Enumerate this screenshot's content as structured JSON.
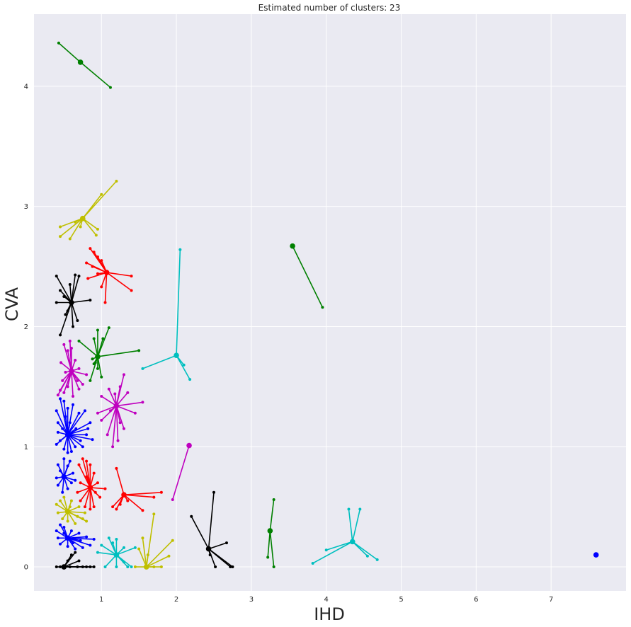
{
  "chart_data": {
    "type": "scatter",
    "title": "Estimated number of clusters: 23",
    "xlabel": "IHD",
    "ylabel": "CVA",
    "xlim": [
      0.1,
      8.0
    ],
    "ylim": [
      -0.2,
      4.6
    ],
    "x_ticks": [
      1,
      2,
      3,
      4,
      5,
      6,
      7
    ],
    "y_ticks": [
      0,
      1,
      2,
      3,
      4
    ],
    "grid": true,
    "background_color": "#eaeaf2",
    "grid_color": "#ffffff",
    "colors": {
      "b": "#0000ff",
      "g": "#008000",
      "r": "#ff0000",
      "c": "#00bfbf",
      "m": "#bf00bf",
      "y": "#bfbf00",
      "k": "#000000"
    },
    "clusters": [
      {
        "color": "g",
        "center": [
          0.72,
          4.2
        ],
        "members": [
          [
            0.43,
            4.36
          ],
          [
            1.12,
            3.99
          ]
        ]
      },
      {
        "color": "y",
        "center": [
          0.75,
          2.9
        ],
        "members": [
          [
            0.45,
            2.83
          ],
          [
            0.45,
            2.75
          ],
          [
            0.58,
            2.73
          ],
          [
            0.65,
            2.87
          ],
          [
            0.72,
            2.83
          ],
          [
            0.95,
            2.81
          ],
          [
            0.93,
            2.76
          ],
          [
            1.0,
            3.1
          ],
          [
            1.2,
            3.21
          ]
        ]
      },
      {
        "color": "r",
        "center": [
          1.07,
          2.45
        ],
        "members": [
          [
            0.85,
            2.65
          ],
          [
            0.9,
            2.62
          ],
          [
            0.95,
            2.58
          ],
          [
            1.0,
            2.55
          ],
          [
            0.8,
            2.53
          ],
          [
            0.88,
            2.5
          ],
          [
            0.82,
            2.4
          ],
          [
            1.0,
            2.33
          ],
          [
            1.05,
            2.2
          ],
          [
            1.4,
            2.42
          ],
          [
            1.4,
            2.3
          ],
          [
            0.95,
            2.44
          ]
        ]
      },
      {
        "color": "k",
        "center": [
          0.6,
          2.2
        ],
        "members": [
          [
            0.4,
            2.42
          ],
          [
            0.45,
            2.3
          ],
          [
            0.5,
            2.25
          ],
          [
            0.4,
            2.2
          ],
          [
            0.52,
            2.1
          ],
          [
            0.45,
            1.93
          ],
          [
            0.55,
            2.13
          ],
          [
            0.62,
            2.0
          ],
          [
            0.68,
            2.05
          ],
          [
            0.65,
            2.43
          ],
          [
            0.7,
            2.42
          ],
          [
            0.85,
            2.22
          ],
          [
            0.58,
            2.35
          ]
        ]
      },
      {
        "color": "c",
        "center": [
          2.0,
          1.76
        ],
        "members": [
          [
            2.05,
            2.64
          ],
          [
            1.55,
            1.65
          ],
          [
            2.1,
            1.68
          ],
          [
            2.18,
            1.56
          ]
        ]
      },
      {
        "color": "g",
        "center": [
          0.95,
          1.75
        ],
        "members": [
          [
            0.7,
            1.88
          ],
          [
            0.9,
            1.9
          ],
          [
            0.95,
            1.97
          ],
          [
            1.1,
            1.99
          ],
          [
            1.02,
            1.9
          ],
          [
            1.5,
            1.8
          ],
          [
            0.9,
            1.69
          ],
          [
            0.85,
            1.55
          ],
          [
            1.0,
            1.58
          ],
          [
            0.92,
            1.7
          ],
          [
            0.95,
            1.65
          ],
          [
            0.88,
            1.73
          ]
        ]
      },
      {
        "color": "g",
        "center": [
          3.55,
          2.67
        ],
        "members": [
          [
            3.95,
            2.16
          ]
        ]
      },
      {
        "color": "m",
        "center": [
          0.6,
          1.63
        ],
        "members": [
          [
            0.5,
            1.85
          ],
          [
            0.55,
            1.8
          ],
          [
            0.6,
            1.82
          ],
          [
            0.65,
            1.72
          ],
          [
            0.7,
            1.65
          ],
          [
            0.8,
            1.6
          ],
          [
            0.75,
            1.52
          ],
          [
            0.7,
            1.48
          ],
          [
            0.62,
            1.42
          ],
          [
            0.55,
            1.5
          ],
          [
            0.5,
            1.45
          ],
          [
            0.45,
            1.47
          ],
          [
            0.42,
            1.43
          ],
          [
            0.48,
            1.55
          ],
          [
            0.52,
            1.62
          ],
          [
            0.58,
            1.88
          ],
          [
            0.46,
            1.7
          ],
          [
            0.68,
            1.55
          ]
        ]
      },
      {
        "color": "m",
        "center": [
          1.2,
          1.34
        ],
        "members": [
          [
            1.3,
            1.6
          ],
          [
            1.25,
            1.5
          ],
          [
            1.35,
            1.45
          ],
          [
            1.55,
            1.37
          ],
          [
            1.45,
            1.28
          ],
          [
            1.3,
            1.15
          ],
          [
            1.22,
            1.05
          ],
          [
            1.15,
            1.0
          ],
          [
            1.08,
            1.1
          ],
          [
            1.0,
            1.22
          ],
          [
            0.95,
            1.28
          ],
          [
            1.0,
            1.42
          ],
          [
            1.1,
            1.48
          ],
          [
            1.18,
            1.44
          ],
          [
            1.25,
            1.2
          ],
          [
            1.12,
            1.3
          ]
        ]
      },
      {
        "color": "m",
        "center": [
          2.17,
          1.01
        ],
        "members": [
          [
            1.95,
            0.56
          ]
        ]
      },
      {
        "color": "b",
        "center": [
          0.55,
          1.1
        ],
        "members": [
          [
            0.4,
            1.3
          ],
          [
            0.42,
            1.2
          ],
          [
            0.45,
            1.05
          ],
          [
            0.4,
            1.02
          ],
          [
            0.5,
            0.98
          ],
          [
            0.55,
            0.95
          ],
          [
            0.6,
            0.96
          ],
          [
            0.65,
            1.0
          ],
          [
            0.72,
            1.05
          ],
          [
            0.8,
            1.1
          ],
          [
            0.85,
            1.2
          ],
          [
            0.78,
            1.3
          ],
          [
            0.7,
            1.28
          ],
          [
            0.62,
            1.35
          ],
          [
            0.55,
            1.32
          ],
          [
            0.5,
            1.38
          ],
          [
            0.45,
            1.4
          ],
          [
            0.48,
            1.15
          ],
          [
            0.58,
            1.2
          ],
          [
            0.66,
            1.15
          ],
          [
            0.75,
            1.0
          ],
          [
            0.42,
            1.12
          ],
          [
            0.52,
            1.25
          ],
          [
            0.82,
            1.15
          ],
          [
            0.88,
            1.06
          ]
        ]
      },
      {
        "color": "b",
        "center": [
          0.5,
          0.75
        ],
        "members": [
          [
            0.42,
            0.85
          ],
          [
            0.45,
            0.8
          ],
          [
            0.55,
            0.84
          ],
          [
            0.62,
            0.78
          ],
          [
            0.6,
            0.7
          ],
          [
            0.55,
            0.65
          ],
          [
            0.48,
            0.62
          ],
          [
            0.42,
            0.68
          ],
          [
            0.4,
            0.74
          ],
          [
            0.58,
            0.88
          ],
          [
            0.5,
            0.9
          ],
          [
            0.65,
            0.72
          ]
        ]
      },
      {
        "color": "r",
        "center": [
          0.85,
          0.66
        ],
        "members": [
          [
            0.7,
            0.85
          ],
          [
            0.75,
            0.9
          ],
          [
            0.8,
            0.88
          ],
          [
            0.85,
            0.85
          ],
          [
            0.9,
            0.78
          ],
          [
            0.95,
            0.7
          ],
          [
            1.05,
            0.65
          ],
          [
            0.98,
            0.58
          ],
          [
            0.9,
            0.5
          ],
          [
            0.85,
            0.48
          ],
          [
            0.78,
            0.5
          ],
          [
            0.72,
            0.55
          ],
          [
            0.68,
            0.62
          ],
          [
            0.72,
            0.7
          ],
          [
            0.8,
            0.75
          ],
          [
            0.92,
            0.62
          ]
        ]
      },
      {
        "color": "r",
        "center": [
          1.3,
          0.6
        ],
        "members": [
          [
            1.2,
            0.82
          ],
          [
            1.8,
            0.62
          ],
          [
            1.7,
            0.58
          ],
          [
            1.55,
            0.47
          ],
          [
            1.25,
            0.52
          ],
          [
            1.15,
            0.5
          ],
          [
            1.35,
            0.55
          ],
          [
            1.2,
            0.48
          ]
        ]
      },
      {
        "color": "y",
        "center": [
          0.55,
          0.46
        ],
        "members": [
          [
            0.4,
            0.52
          ],
          [
            0.45,
            0.55
          ],
          [
            0.5,
            0.58
          ],
          [
            0.6,
            0.55
          ],
          [
            0.7,
            0.5
          ],
          [
            0.78,
            0.45
          ],
          [
            0.75,
            0.4
          ],
          [
            0.65,
            0.36
          ],
          [
            0.55,
            0.38
          ],
          [
            0.48,
            0.4
          ],
          [
            0.42,
            0.45
          ],
          [
            0.8,
            0.38
          ],
          [
            0.58,
            0.5
          ],
          [
            0.68,
            0.42
          ]
        ]
      },
      {
        "color": "b",
        "center": [
          0.55,
          0.24
        ],
        "members": [
          [
            0.4,
            0.3
          ],
          [
            0.45,
            0.35
          ],
          [
            0.5,
            0.33
          ],
          [
            0.6,
            0.3
          ],
          [
            0.7,
            0.28
          ],
          [
            0.8,
            0.25
          ],
          [
            0.9,
            0.23
          ],
          [
            0.85,
            0.18
          ],
          [
            0.75,
            0.16
          ],
          [
            0.65,
            0.15
          ],
          [
            0.55,
            0.17
          ],
          [
            0.45,
            0.19
          ],
          [
            0.42,
            0.24
          ],
          [
            0.5,
            0.28
          ],
          [
            0.62,
            0.2
          ],
          [
            0.72,
            0.22
          ]
        ]
      },
      {
        "color": "c",
        "center": [
          1.2,
          0.1
        ],
        "members": [
          [
            1.0,
            0.18
          ],
          [
            1.1,
            0.24
          ],
          [
            1.2,
            0.23
          ],
          [
            1.3,
            0.16
          ],
          [
            1.45,
            0.16
          ],
          [
            1.4,
            0.0
          ],
          [
            1.35,
            0.0
          ],
          [
            1.3,
            0.04
          ],
          [
            1.2,
            0.0
          ],
          [
            1.05,
            0.0
          ],
          [
            0.95,
            0.12
          ],
          [
            1.15,
            0.2
          ]
        ]
      },
      {
        "color": "y",
        "center": [
          1.6,
          0.0
        ],
        "members": [
          [
            1.5,
            0.15
          ],
          [
            1.55,
            0.24
          ],
          [
            1.7,
            0.44
          ],
          [
            1.95,
            0.22
          ],
          [
            1.9,
            0.09
          ],
          [
            1.8,
            0.0
          ],
          [
            1.7,
            0.0
          ],
          [
            1.45,
            0.0
          ],
          [
            1.62,
            0.1
          ]
        ]
      },
      {
        "color": "k",
        "center": [
          0.5,
          0.0
        ],
        "members": [
          [
            0.4,
            0.0
          ],
          [
            0.45,
            0.0
          ],
          [
            0.55,
            0.05
          ],
          [
            0.6,
            0.1
          ],
          [
            0.65,
            0.12
          ],
          [
            0.7,
            0.05
          ],
          [
            0.75,
            0.0
          ],
          [
            0.8,
            0.0
          ],
          [
            0.85,
            0.0
          ],
          [
            0.9,
            0.0
          ],
          [
            0.58,
            0.0
          ],
          [
            0.68,
            0.0
          ]
        ]
      },
      {
        "color": "k",
        "center": [
          2.43,
          0.15
        ],
        "members": [
          [
            2.5,
            0.62
          ],
          [
            2.2,
            0.42
          ],
          [
            2.67,
            0.2
          ],
          [
            2.75,
            0.0
          ],
          [
            2.72,
            0.0
          ],
          [
            2.52,
            0.0
          ],
          [
            2.45,
            0.1
          ]
        ]
      },
      {
        "color": "g",
        "center": [
          3.25,
          0.3
        ],
        "members": [
          [
            3.3,
            0.56
          ],
          [
            3.22,
            0.08
          ],
          [
            3.3,
            0.0
          ]
        ]
      },
      {
        "color": "c",
        "center": [
          4.35,
          0.21
        ],
        "members": [
          [
            4.3,
            0.48
          ],
          [
            4.45,
            0.48
          ],
          [
            4.0,
            0.14
          ],
          [
            3.82,
            0.03
          ],
          [
            4.55,
            0.09
          ],
          [
            4.68,
            0.06
          ]
        ]
      },
      {
        "color": "b",
        "center": [
          7.6,
          0.1
        ],
        "members": []
      }
    ]
  }
}
